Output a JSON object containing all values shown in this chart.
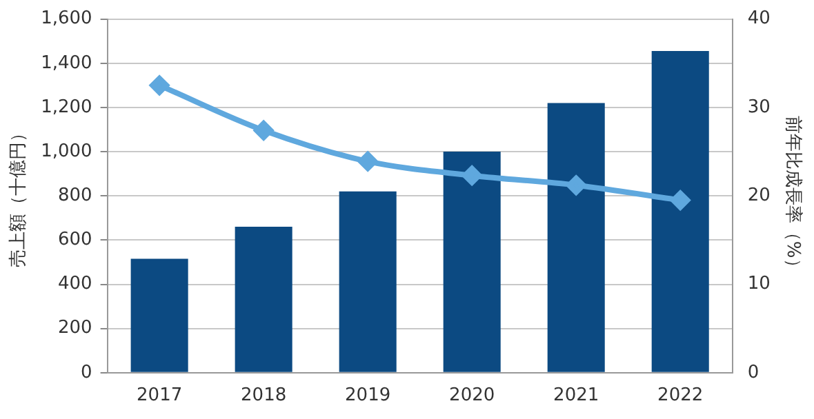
{
  "chart_data": {
    "type": "bar",
    "ylabel": "売上額（十億円）",
    "y2label": "前年比成長率（%）",
    "categories": [
      "2017",
      "2018",
      "2019",
      "2020",
      "2021",
      "2022"
    ],
    "series": [
      {
        "color": "#0c4a82",
        "values": [
          515,
          660,
          820,
          1000,
          1220,
          1455
        ]
      },
      {
        "type": "line",
        "axis": "y2",
        "color": "#5fa8de",
        "values": [
          32.5,
          27.4,
          23.9,
          22.3,
          21.2,
          19.5
        ]
      }
    ],
    "ylim": [
      0,
      1600
    ],
    "yticks": [
      {
        "value": 0,
        "label": "0"
      },
      {
        "value": 200,
        "label": "200"
      },
      {
        "value": 400,
        "label": "400"
      },
      {
        "value": 600,
        "label": "600"
      },
      {
        "value": 800,
        "label": "800"
      },
      {
        "value": 1000,
        "label": "1,000"
      },
      {
        "value": 1200,
        "label": "1,200"
      },
      {
        "value": 1400,
        "label": "1,400"
      },
      {
        "value": 1600,
        "label": "1,600"
      }
    ],
    "y2lim": [
      0,
      40
    ],
    "y2ticks": [
      0,
      10,
      20,
      30,
      40
    ],
    "grid": "y",
    "legend": false,
    "marker": "diamond",
    "line_style": "solid"
  }
}
